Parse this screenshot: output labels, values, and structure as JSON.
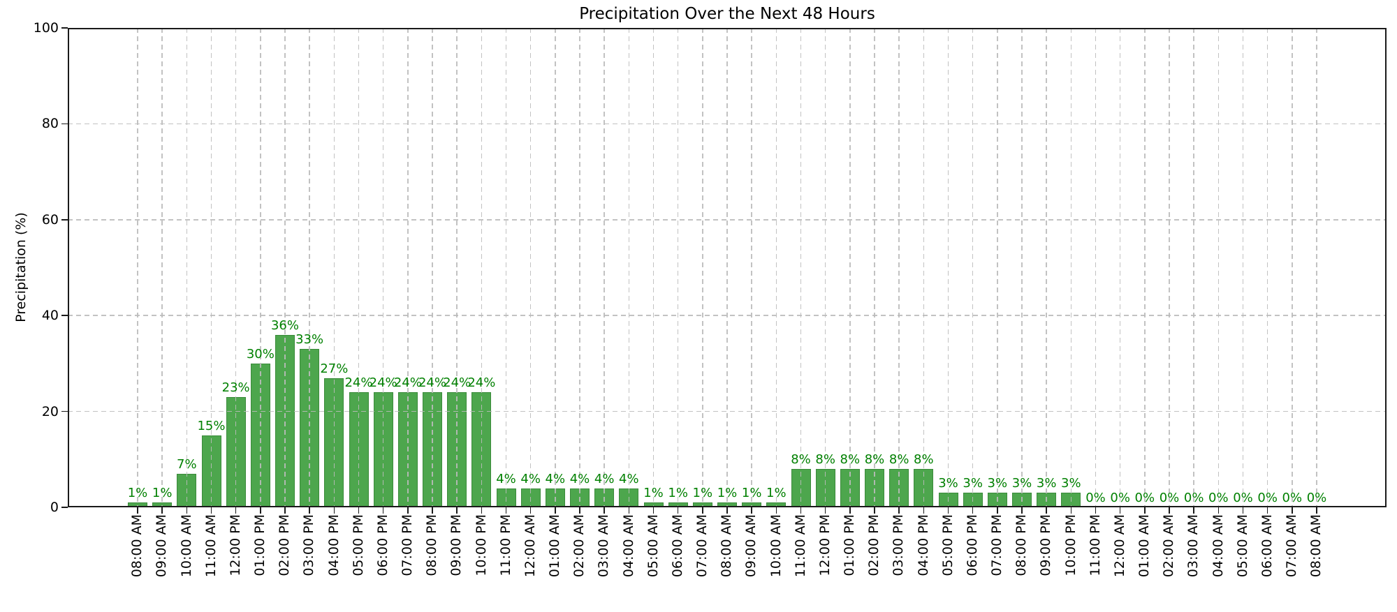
{
  "title": "Precipitation Over the Next 48 Hours",
  "ylabel": "Precipitation (%)",
  "chart_data": {
    "type": "bar",
    "title": "Precipitation Over the Next 48 Hours",
    "xlabel": "",
    "ylabel": "Precipitation (%)",
    "categories": [
      "08:00 AM",
      "09:00 AM",
      "10:00 AM",
      "11:00 AM",
      "12:00 PM",
      "01:00 PM",
      "02:00 PM",
      "03:00 PM",
      "04:00 PM",
      "05:00 PM",
      "06:00 PM",
      "07:00 PM",
      "08:00 PM",
      "09:00 PM",
      "10:00 PM",
      "11:00 PM",
      "12:00 AM",
      "01:00 AM",
      "02:00 AM",
      "03:00 AM",
      "04:00 AM",
      "05:00 AM",
      "06:00 AM",
      "07:00 AM",
      "08:00 AM",
      "09:00 AM",
      "10:00 AM",
      "11:00 AM",
      "12:00 PM",
      "01:00 PM",
      "02:00 PM",
      "03:00 PM",
      "04:00 PM",
      "05:00 PM",
      "06:00 PM",
      "07:00 PM",
      "08:00 PM",
      "09:00 PM",
      "10:00 PM",
      "11:00 PM",
      "12:00 AM",
      "01:00 AM",
      "02:00 AM",
      "03:00 AM",
      "04:00 AM",
      "05:00 AM",
      "06:00 AM",
      "07:00 AM",
      "08:00 AM"
    ],
    "values": [
      1,
      1,
      7,
      15,
      23,
      30,
      36,
      33,
      27,
      24,
      24,
      24,
      24,
      24,
      24,
      4,
      4,
      4,
      4,
      4,
      4,
      1,
      1,
      1,
      1,
      1,
      1,
      8,
      8,
      8,
      8,
      8,
      8,
      3,
      3,
      3,
      3,
      3,
      3,
      0,
      0,
      0,
      0,
      0,
      0,
      0,
      0,
      0,
      0
    ],
    "bar_labels": [
      "1%",
      "1%",
      "7%",
      "15%",
      "23%",
      "30%",
      "36%",
      "33%",
      "27%",
      "24%",
      "24%",
      "24%",
      "24%",
      "24%",
      "24%",
      "4%",
      "4%",
      "4%",
      "4%",
      "4%",
      "4%",
      "1%",
      "1%",
      "1%",
      "1%",
      "1%",
      "1%",
      "8%",
      "8%",
      "8%",
      "8%",
      "8%",
      "8%",
      "3%",
      "3%",
      "3%",
      "3%",
      "3%",
      "3%",
      "0%",
      "0%",
      "0%",
      "0%",
      "0%",
      "0%",
      "0%",
      "0%",
      "0%",
      "0%"
    ],
    "ylim": [
      0,
      100
    ],
    "yticks": [
      0,
      20,
      40,
      60,
      80,
      100
    ],
    "grid": true,
    "legend": "none",
    "colors": {
      "bar_fill": "#4da64d",
      "bar_edge": "#3a8a3a",
      "bar_label": "#008000",
      "grid": "#bbbbbb",
      "axis": "#1a1a1a",
      "tick_text": "#000000"
    }
  }
}
